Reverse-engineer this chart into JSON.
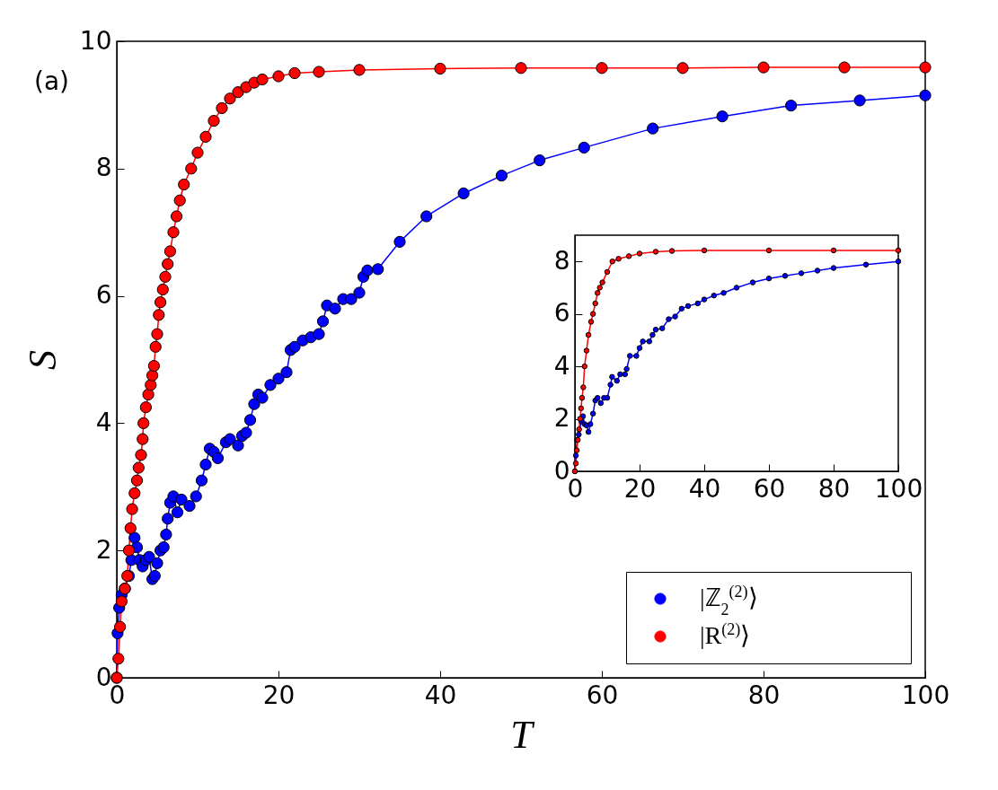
{
  "chart_data": [
    {
      "type": "line",
      "xlabel": "T",
      "ylabel": "S",
      "xlim": [
        0,
        100
      ],
      "ylim": [
        0,
        10
      ],
      "xticks": [
        0,
        20,
        40,
        60,
        80,
        100
      ],
      "yticks": [
        0,
        2,
        4,
        6,
        8,
        10
      ],
      "grid": false,
      "legend": "bottom right",
      "marker": "circle",
      "line_style": "solid",
      "annotations": [
        "(a)"
      ],
      "series": [
        {
          "name": "|ℤ$_{2}$$^{(2)}$⟩",
          "color": "#0000ff",
          "x": [
            0,
            0.1,
            0.3,
            0.6,
            1,
            1.5,
            1.8,
            2.2,
            2.5,
            2.8,
            3.2,
            3.6,
            4.0,
            4.4,
            4.7,
            5.0,
            5.4,
            5.8,
            6.1,
            6.3,
            6.6,
            7.0,
            7.5,
            8,
            9,
            9.8,
            10.5,
            11,
            11.5,
            12,
            12.5,
            13.5,
            14,
            15,
            15.5,
            16,
            16.5,
            17,
            17.5,
            18,
            19,
            20,
            21,
            21.5,
            22,
            23,
            24,
            25,
            25.5,
            26,
            27,
            28,
            29,
            30,
            30.5,
            31,
            32.3,
            35,
            38.3,
            42.9,
            47.6,
            52.3,
            57.8,
            66.3,
            74.9,
            83.4,
            91.9,
            100
          ],
          "values": [
            0,
            0.7,
            1.1,
            1.3,
            1.4,
            1.6,
            1.85,
            2.2,
            2.05,
            1.85,
            1.75,
            1.85,
            1.9,
            1.55,
            1.6,
            1.8,
            2.0,
            2.05,
            2.25,
            2.5,
            2.75,
            2.85,
            2.6,
            2.8,
            2.7,
            2.85,
            3.1,
            3.35,
            3.6,
            3.55,
            3.45,
            3.7,
            3.75,
            3.65,
            3.8,
            3.85,
            4.05,
            4.3,
            4.45,
            4.4,
            4.6,
            4.7,
            4.8,
            5.15,
            5.2,
            5.3,
            5.35,
            5.4,
            5.6,
            5.85,
            5.8,
            5.95,
            5.95,
            6.05,
            6.3,
            6.4,
            6.42,
            6.85,
            7.25,
            7.61,
            7.89,
            8.13,
            8.33,
            8.63,
            8.82,
            8.99,
            9.07,
            9.15
          ]
        },
        {
          "name": "|R$^{(2)}$⟩",
          "color": "#ff0000",
          "x": [
            0,
            0.2,
            0.4,
            0.6,
            1,
            1.3,
            1.5,
            1.7,
            1.9,
            2.2,
            2.5,
            2.7,
            3.0,
            3.2,
            3.3,
            3.6,
            3.9,
            4.2,
            4.4,
            4.6,
            4.8,
            5.0,
            5.2,
            5.4,
            5.7,
            6.0,
            6.3,
            6.6,
            7.0,
            7.4,
            7.8,
            8.3,
            9.2,
            10,
            11,
            12,
            13,
            14,
            15,
            16,
            17,
            18,
            20,
            22,
            25,
            30,
            40,
            50,
            60,
            70,
            80,
            90,
            100
          ],
          "values": [
            0,
            0.3,
            0.8,
            1.2,
            1.4,
            1.6,
            2.0,
            2.35,
            2.65,
            2.9,
            3.1,
            3.3,
            3.5,
            3.75,
            4.0,
            4.25,
            4.45,
            4.6,
            4.75,
            4.9,
            5.2,
            5.4,
            5.7,
            5.9,
            6.1,
            6.3,
            6.5,
            6.7,
            7.0,
            7.25,
            7.5,
            7.75,
            8.0,
            8.25,
            8.5,
            8.75,
            8.95,
            9.1,
            9.2,
            9.28,
            9.35,
            9.4,
            9.45,
            9.5,
            9.52,
            9.55,
            9.57,
            9.58,
            9.58,
            9.58,
            9.59,
            9.59,
            9.59
          ]
        }
      ]
    },
    {
      "type": "line",
      "xlim": [
        0,
        100
      ],
      "ylim": [
        0,
        9
      ],
      "xticks": [
        0,
        20,
        40,
        60,
        80,
        100
      ],
      "yticks": [
        0,
        2,
        4,
        6,
        8
      ],
      "grid": false,
      "marker": "circle",
      "line_style": "solid",
      "series": [
        {
          "color": "#0000ff",
          "x": [
            0,
            0.3,
            0.7,
            1.2,
            2,
            2.5,
            3,
            3.6,
            4.2,
            4.8,
            5.6,
            6.3,
            7,
            8,
            9,
            10,
            11,
            11.5,
            13,
            14,
            15.5,
            16,
            17,
            19,
            20,
            21,
            23,
            24,
            25,
            27,
            29,
            31,
            33,
            35,
            38,
            40,
            43,
            46,
            50,
            55,
            60,
            65,
            70,
            75,
            80,
            90,
            100
          ],
          "values": [
            0,
            0.6,
            1.2,
            1.4,
            1.9,
            2.1,
            1.8,
            1.75,
            1.5,
            1.8,
            2.2,
            2.7,
            2.8,
            2.6,
            2.8,
            2.8,
            3.3,
            3.6,
            3.45,
            3.7,
            3.7,
            3.9,
            4.4,
            4.4,
            4.7,
            4.95,
            4.95,
            5.2,
            5.4,
            5.45,
            5.8,
            5.9,
            6.2,
            6.3,
            6.4,
            6.55,
            6.7,
            6.8,
            7.0,
            7.2,
            7.35,
            7.45,
            7.55,
            7.65,
            7.75,
            7.88,
            8.0
          ]
        },
        {
          "color": "#ff0000",
          "x": [
            0,
            0.3,
            0.6,
            0.9,
            1.3,
            1.6,
            1.9,
            2.2,
            2.6,
            3.0,
            3.6,
            4.2,
            5.0,
            5.6,
            6.3,
            7.0,
            7.7,
            8.5,
            10,
            11.6,
            13.5,
            16.7,
            20,
            25,
            30,
            40,
            60,
            80,
            100
          ],
          "values": [
            0,
            0.3,
            0.8,
            1.2,
            1.6,
            2.0,
            2.4,
            2.8,
            3.2,
            4.0,
            4.6,
            5.2,
            5.7,
            6.0,
            6.4,
            6.8,
            7.0,
            7.2,
            7.6,
            8.0,
            8.1,
            8.2,
            8.3,
            8.37,
            8.4,
            8.42,
            8.42,
            8.42,
            8.42
          ]
        }
      ]
    }
  ]
}
